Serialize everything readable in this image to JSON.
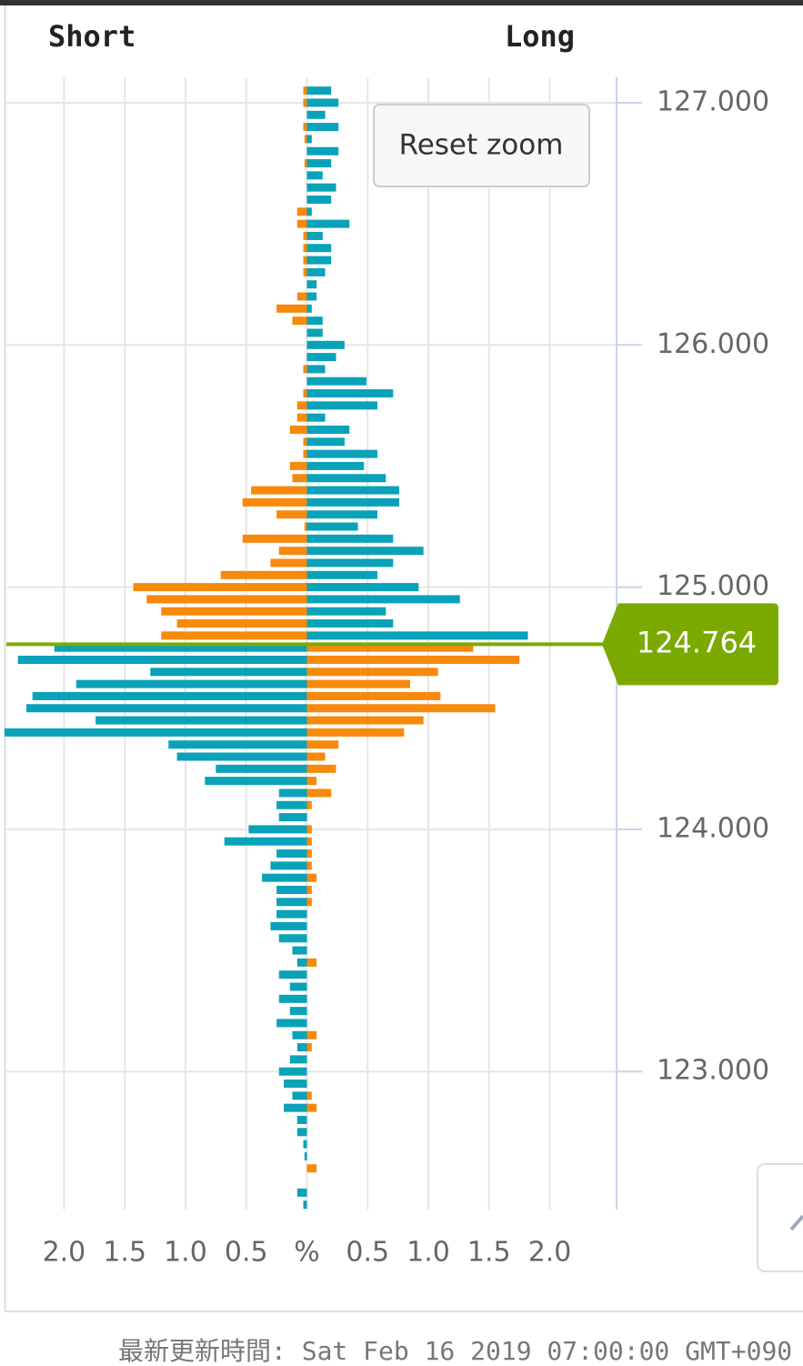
{
  "chart_data": {
    "type": "butterfly",
    "left_title": "Short",
    "right_title": "Long",
    "y": [
      127.05,
      127.0,
      126.95,
      126.9,
      126.85,
      126.8,
      126.75,
      126.7,
      126.65,
      126.6,
      126.55,
      126.5,
      126.45,
      126.4,
      126.35,
      126.3,
      126.25,
      126.2,
      126.15,
      126.1,
      126.05,
      126.0,
      125.95,
      125.9,
      125.85,
      125.8,
      125.75,
      125.7,
      125.65,
      125.6,
      125.55,
      125.5,
      125.45,
      125.4,
      125.35,
      125.3,
      125.25,
      125.2,
      125.15,
      125.1,
      125.05,
      125.0,
      124.95,
      124.9,
      124.85,
      124.8,
      124.75,
      124.7,
      124.65,
      124.6,
      124.55,
      124.5,
      124.45,
      124.4,
      124.35,
      124.3,
      124.25,
      124.2,
      124.15,
      124.1,
      124.05,
      124.0,
      123.95,
      123.9,
      123.85,
      123.8,
      123.75,
      123.7,
      123.65,
      123.6,
      123.55,
      123.5,
      123.45,
      123.4,
      123.35,
      123.3,
      123.25,
      123.2,
      123.15,
      123.1,
      123.05,
      123.0,
      122.95,
      122.9,
      122.85,
      122.8,
      122.75,
      122.7,
      122.65,
      122.6,
      122.55,
      122.5,
      122.45
    ],
    "series": [
      {
        "side": "left",
        "color_above": "#f7890c",
        "color_below": "#0aa2b9",
        "values": [
          0.03,
          0.03,
          0,
          0.03,
          0.02,
          0,
          0.02,
          0,
          0,
          0,
          0.08,
          0.08,
          0.03,
          0.03,
          0.03,
          0.03,
          0,
          0.08,
          0.25,
          0.12,
          0,
          0,
          0,
          0.03,
          0,
          0.03,
          0.08,
          0.08,
          0.14,
          0.03,
          0.03,
          0.14,
          0.12,
          0.46,
          0.53,
          0.25,
          0.02,
          0.53,
          0.23,
          0.3,
          0.71,
          1.43,
          1.32,
          1.2,
          1.07,
          1.2,
          2.08,
          2.38,
          1.29,
          1.9,
          2.26,
          2.31,
          1.74,
          2.49,
          1.14,
          1.07,
          0.75,
          0.84,
          0.23,
          0.25,
          0.23,
          0.48,
          0.68,
          0.25,
          0.3,
          0.37,
          0.25,
          0.25,
          0.25,
          0.3,
          0.23,
          0.12,
          0.08,
          0.23,
          0.14,
          0.23,
          0.14,
          0.25,
          0.12,
          0.08,
          0.14,
          0.23,
          0.19,
          0.12,
          0.19,
          0.08,
          0.08,
          0.03,
          0.02,
          0,
          0,
          0.08,
          0.03
        ]
      },
      {
        "side": "right",
        "color_above": "#0aa2b9",
        "color_below": "#f7890c",
        "values": [
          0.2,
          0.26,
          0.15,
          0.26,
          0.04,
          0.26,
          0.2,
          0.13,
          0.24,
          0.2,
          0.04,
          0.35,
          0.13,
          0.2,
          0.2,
          0.15,
          0.08,
          0.08,
          0.04,
          0.13,
          0.13,
          0.31,
          0.24,
          0.15,
          0.49,
          0.71,
          0.58,
          0.15,
          0.35,
          0.31,
          0.58,
          0.47,
          0.65,
          0.76,
          0.76,
          0.58,
          0.42,
          0.71,
          0.96,
          0.71,
          0.58,
          0.92,
          1.26,
          0.65,
          0.71,
          1.82,
          1.37,
          1.75,
          1.08,
          0.85,
          1.1,
          1.55,
          0.96,
          0.8,
          0.26,
          0.15,
          0.24,
          0.08,
          0.2,
          0.04,
          0,
          0.04,
          0.04,
          0.04,
          0.04,
          0.08,
          0.04,
          0.04,
          0,
          0,
          0,
          0,
          0.08,
          0,
          0,
          0,
          0,
          0,
          0.08,
          0.04,
          0,
          0,
          0,
          0.04,
          0.08,
          0,
          0,
          0,
          0,
          0.08,
          0,
          0,
          0
        ]
      }
    ],
    "current_price": {
      "value": 124.764,
      "label": "124.764",
      "color": "#7aaa00"
    },
    "xlim": [
      -2.49,
      2.55
    ],
    "xticks": [
      {
        "value": -2,
        "label": "2.0"
      },
      {
        "value": -1.5,
        "label": "1.5"
      },
      {
        "value": -1,
        "label": "1.0"
      },
      {
        "value": -0.5,
        "label": "0.5"
      },
      {
        "value": 0,
        "label": "%"
      },
      {
        "value": 0.5,
        "label": "0.5"
      },
      {
        "value": 1,
        "label": "1.0"
      },
      {
        "value": 1.5,
        "label": "1.5"
      },
      {
        "value": 2,
        "label": "2.0"
      }
    ],
    "ylim": [
      122.43,
      127.105
    ],
    "yticks": [
      {
        "value": 127,
        "label": "127.000"
      },
      {
        "value": 126,
        "label": "126.000"
      },
      {
        "value": 125,
        "label": "125.000"
      },
      {
        "value": 124,
        "label": "124.000"
      },
      {
        "value": 123,
        "label": "123.000"
      }
    ],
    "grid": true,
    "reset_button": "Reset zoom",
    "footer": "最新更新時間: Sat Feb 16 2019 07:00:00 GMT+090"
  }
}
